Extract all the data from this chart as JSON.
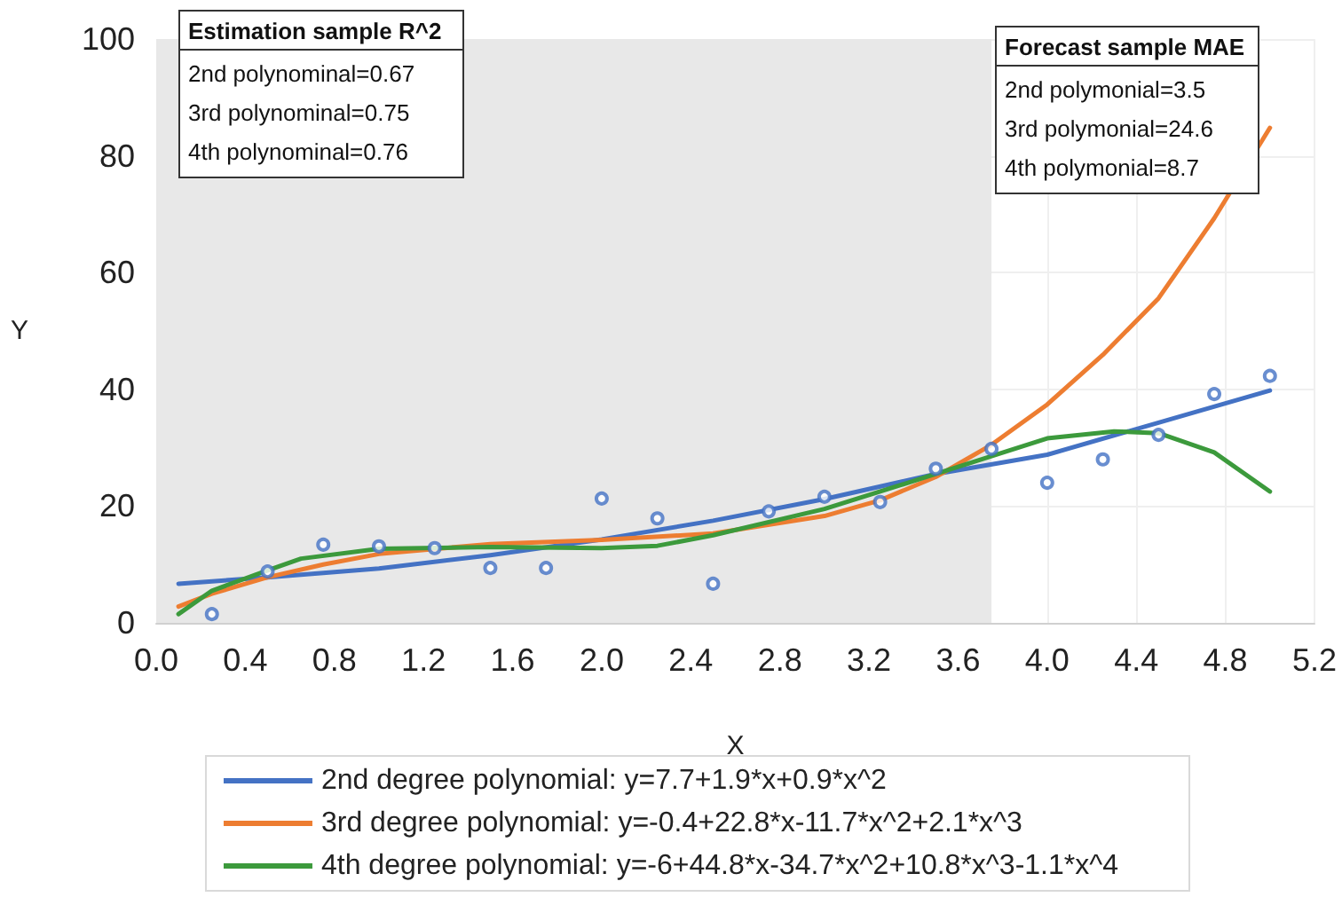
{
  "chart_data": {
    "type": "line",
    "xlabel": "X",
    "ylabel": "Y",
    "xlim": [
      0,
      5.2
    ],
    "xticks": [
      {
        "value": 0,
        "label": "0.0"
      },
      0.4,
      0.8,
      1.2,
      1.6,
      {
        "value": 2,
        "label": "2.0"
      },
      2.4,
      2.8,
      3.2,
      3.6,
      {
        "value": 4,
        "label": "4.0"
      },
      4.4,
      4.8,
      5.2
    ],
    "ylim": [
      0,
      100
    ],
    "yticks": [
      0,
      20,
      40,
      60,
      80,
      100
    ],
    "grid": true,
    "legend": "bottom",
    "marker": "none",
    "line_style": "solid",
    "bands": [
      {
        "axis": "x",
        "from": 0,
        "to": 3.75,
        "color": "#e8e8e8"
      }
    ],
    "annotations": [
      "Estimation sample R^2",
      "2nd polynominal=0.67\n3rd polynominal=0.75\n4th polynominal=0.76",
      "Forecast sample MAE",
      "2nd polymonial=3.5\n3rd polymonial=24.6\n4th polymonial=8.7"
    ],
    "series": [
      {
        "type": "scatter",
        "marker": "circle",
        "color": "#4472c4",
        "x": [
          0.25,
          0.5,
          0.75,
          1.0,
          1.25,
          1.5,
          1.75,
          2.0,
          2.25,
          2.5,
          2.75,
          3.0,
          3.25,
          3.5,
          3.75,
          4.0,
          4.25,
          4.5,
          4.75,
          5.0
        ],
        "values": [
          1.5,
          8.8,
          13.4,
          13.1,
          12.8,
          9.4,
          9.4,
          21.3,
          17.9,
          6.7,
          19.1,
          21.6,
          20.7,
          26.4,
          29.8,
          24.0,
          28.0,
          32.2,
          39.2,
          42.3
        ]
      },
      {
        "name": "2nd degree polynomial: y=7.7+1.9*x+0.9*x^2",
        "color": "#4472c4",
        "x": [
          0.1,
          0.5,
          1.0,
          1.5,
          2.0,
          2.5,
          3.0,
          3.5,
          4.0,
          4.5,
          5.0
        ],
        "values": [
          6.7,
          7.8,
          9.3,
          11.6,
          14.3,
          17.5,
          21.2,
          25.5,
          28.8,
          34.3,
          39.8
        ]
      },
      {
        "name": "3rd degree polynomial: y=-0.4+22.8*x-11.7*x^2+2.1*x^3",
        "color": "#ed7d31",
        "x": [
          0.1,
          0.25,
          0.5,
          0.75,
          1.0,
          1.5,
          2.0,
          2.5,
          3.0,
          3.25,
          3.5,
          3.75,
          4.0,
          4.25,
          4.5,
          4.75,
          5.0
        ],
        "values": [
          2.8,
          5,
          7.8,
          10,
          11.8,
          13.5,
          14.2,
          15.3,
          18.3,
          21,
          25,
          30.5,
          37.4,
          45.9,
          55.6,
          69.3,
          84.8
        ]
      },
      {
        "name": "4th degree polynomial: y=-6+44.8*x-34.7*x^2+10.8*x^3-1.1*x^4",
        "color": "#3c9a3c",
        "x": [
          0.1,
          0.25,
          0.5,
          0.65,
          1.0,
          1.5,
          2.0,
          2.25,
          2.5,
          3.0,
          3.5,
          4.0,
          4.3,
          4.5,
          4.75,
          5.0
        ],
        "values": [
          1.5,
          5.5,
          9,
          11,
          12.7,
          13,
          12.8,
          13.2,
          15,
          19.5,
          25.5,
          31.6,
          32.8,
          32.5,
          29.2,
          22.5
        ]
      }
    ]
  }
}
